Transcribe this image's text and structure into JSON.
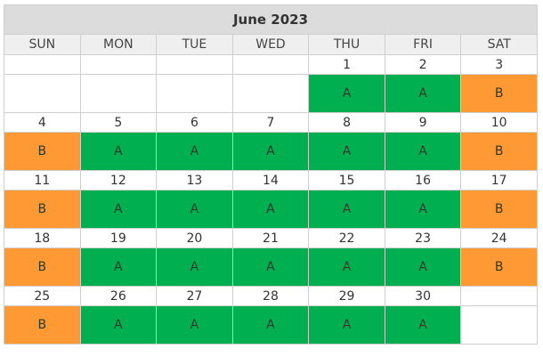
{
  "title": "June 2023",
  "days_of_week": [
    "SUN",
    "MON",
    "TUE",
    "WED",
    "THU",
    "FRI",
    "SAT"
  ],
  "colors": {
    "A": "#00b050",
    "B": "#ff9933"
  },
  "weeks": [
    [
      {
        "date": "",
        "label": ""
      },
      {
        "date": "",
        "label": ""
      },
      {
        "date": "",
        "label": ""
      },
      {
        "date": "",
        "label": ""
      },
      {
        "date": "1",
        "label": "A"
      },
      {
        "date": "2",
        "label": "A"
      },
      {
        "date": "3",
        "label": "B"
      }
    ],
    [
      {
        "date": "4",
        "label": "B"
      },
      {
        "date": "5",
        "label": "A"
      },
      {
        "date": "6",
        "label": "A"
      },
      {
        "date": "7",
        "label": "A"
      },
      {
        "date": "8",
        "label": "A"
      },
      {
        "date": "9",
        "label": "A"
      },
      {
        "date": "10",
        "label": "B"
      }
    ],
    [
      {
        "date": "11",
        "label": "B"
      },
      {
        "date": "12",
        "label": "A"
      },
      {
        "date": "13",
        "label": "A"
      },
      {
        "date": "14",
        "label": "A"
      },
      {
        "date": "15",
        "label": "A"
      },
      {
        "date": "16",
        "label": "A"
      },
      {
        "date": "17",
        "label": "B"
      }
    ],
    [
      {
        "date": "18",
        "label": "B"
      },
      {
        "date": "19",
        "label": "A"
      },
      {
        "date": "20",
        "label": "A"
      },
      {
        "date": "21",
        "label": "A"
      },
      {
        "date": "22",
        "label": "A"
      },
      {
        "date": "23",
        "label": "A"
      },
      {
        "date": "24",
        "label": "B"
      }
    ],
    [
      {
        "date": "25",
        "label": "B"
      },
      {
        "date": "26",
        "label": "A"
      },
      {
        "date": "27",
        "label": "A"
      },
      {
        "date": "28",
        "label": "A"
      },
      {
        "date": "29",
        "label": "A"
      },
      {
        "date": "30",
        "label": "A"
      },
      {
        "date": "",
        "label": ""
      }
    ]
  ]
}
